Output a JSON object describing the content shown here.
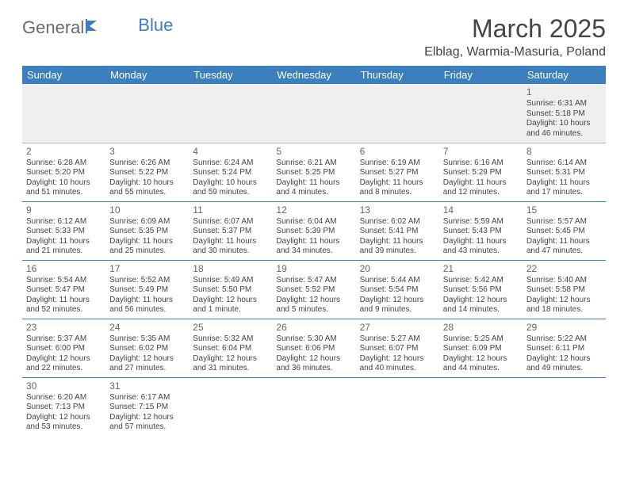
{
  "logo": {
    "text1": "General",
    "text2": "Blue"
  },
  "title": "March 2025",
  "subtitle": "Elblag, Warmia-Masuria, Poland",
  "colors": {
    "header_bg": "#3b7fbf",
    "header_text": "#ffffff",
    "row_border": "#3b7fbf",
    "blank_bg": "#efefef",
    "text": "#444444",
    "daynum": "#666666"
  },
  "day_headers": [
    "Sunday",
    "Monday",
    "Tuesday",
    "Wednesday",
    "Thursday",
    "Friday",
    "Saturday"
  ],
  "weeks": [
    [
      null,
      null,
      null,
      null,
      null,
      null,
      {
        "n": "1",
        "sr": "Sunrise: 6:31 AM",
        "ss": "Sunset: 5:18 PM",
        "dl": "Daylight: 10 hours and 46 minutes."
      }
    ],
    [
      {
        "n": "2",
        "sr": "Sunrise: 6:28 AM",
        "ss": "Sunset: 5:20 PM",
        "dl": "Daylight: 10 hours and 51 minutes."
      },
      {
        "n": "3",
        "sr": "Sunrise: 6:26 AM",
        "ss": "Sunset: 5:22 PM",
        "dl": "Daylight: 10 hours and 55 minutes."
      },
      {
        "n": "4",
        "sr": "Sunrise: 6:24 AM",
        "ss": "Sunset: 5:24 PM",
        "dl": "Daylight: 10 hours and 59 minutes."
      },
      {
        "n": "5",
        "sr": "Sunrise: 6:21 AM",
        "ss": "Sunset: 5:25 PM",
        "dl": "Daylight: 11 hours and 4 minutes."
      },
      {
        "n": "6",
        "sr": "Sunrise: 6:19 AM",
        "ss": "Sunset: 5:27 PM",
        "dl": "Daylight: 11 hours and 8 minutes."
      },
      {
        "n": "7",
        "sr": "Sunrise: 6:16 AM",
        "ss": "Sunset: 5:29 PM",
        "dl": "Daylight: 11 hours and 12 minutes."
      },
      {
        "n": "8",
        "sr": "Sunrise: 6:14 AM",
        "ss": "Sunset: 5:31 PM",
        "dl": "Daylight: 11 hours and 17 minutes."
      }
    ],
    [
      {
        "n": "9",
        "sr": "Sunrise: 6:12 AM",
        "ss": "Sunset: 5:33 PM",
        "dl": "Daylight: 11 hours and 21 minutes."
      },
      {
        "n": "10",
        "sr": "Sunrise: 6:09 AM",
        "ss": "Sunset: 5:35 PM",
        "dl": "Daylight: 11 hours and 25 minutes."
      },
      {
        "n": "11",
        "sr": "Sunrise: 6:07 AM",
        "ss": "Sunset: 5:37 PM",
        "dl": "Daylight: 11 hours and 30 minutes."
      },
      {
        "n": "12",
        "sr": "Sunrise: 6:04 AM",
        "ss": "Sunset: 5:39 PM",
        "dl": "Daylight: 11 hours and 34 minutes."
      },
      {
        "n": "13",
        "sr": "Sunrise: 6:02 AM",
        "ss": "Sunset: 5:41 PM",
        "dl": "Daylight: 11 hours and 39 minutes."
      },
      {
        "n": "14",
        "sr": "Sunrise: 5:59 AM",
        "ss": "Sunset: 5:43 PM",
        "dl": "Daylight: 11 hours and 43 minutes."
      },
      {
        "n": "15",
        "sr": "Sunrise: 5:57 AM",
        "ss": "Sunset: 5:45 PM",
        "dl": "Daylight: 11 hours and 47 minutes."
      }
    ],
    [
      {
        "n": "16",
        "sr": "Sunrise: 5:54 AM",
        "ss": "Sunset: 5:47 PM",
        "dl": "Daylight: 11 hours and 52 minutes."
      },
      {
        "n": "17",
        "sr": "Sunrise: 5:52 AM",
        "ss": "Sunset: 5:49 PM",
        "dl": "Daylight: 11 hours and 56 minutes."
      },
      {
        "n": "18",
        "sr": "Sunrise: 5:49 AM",
        "ss": "Sunset: 5:50 PM",
        "dl": "Daylight: 12 hours and 1 minute."
      },
      {
        "n": "19",
        "sr": "Sunrise: 5:47 AM",
        "ss": "Sunset: 5:52 PM",
        "dl": "Daylight: 12 hours and 5 minutes."
      },
      {
        "n": "20",
        "sr": "Sunrise: 5:44 AM",
        "ss": "Sunset: 5:54 PM",
        "dl": "Daylight: 12 hours and 9 minutes."
      },
      {
        "n": "21",
        "sr": "Sunrise: 5:42 AM",
        "ss": "Sunset: 5:56 PM",
        "dl": "Daylight: 12 hours and 14 minutes."
      },
      {
        "n": "22",
        "sr": "Sunrise: 5:40 AM",
        "ss": "Sunset: 5:58 PM",
        "dl": "Daylight: 12 hours and 18 minutes."
      }
    ],
    [
      {
        "n": "23",
        "sr": "Sunrise: 5:37 AM",
        "ss": "Sunset: 6:00 PM",
        "dl": "Daylight: 12 hours and 22 minutes."
      },
      {
        "n": "24",
        "sr": "Sunrise: 5:35 AM",
        "ss": "Sunset: 6:02 PM",
        "dl": "Daylight: 12 hours and 27 minutes."
      },
      {
        "n": "25",
        "sr": "Sunrise: 5:32 AM",
        "ss": "Sunset: 6:04 PM",
        "dl": "Daylight: 12 hours and 31 minutes."
      },
      {
        "n": "26",
        "sr": "Sunrise: 5:30 AM",
        "ss": "Sunset: 6:06 PM",
        "dl": "Daylight: 12 hours and 36 minutes."
      },
      {
        "n": "27",
        "sr": "Sunrise: 5:27 AM",
        "ss": "Sunset: 6:07 PM",
        "dl": "Daylight: 12 hours and 40 minutes."
      },
      {
        "n": "28",
        "sr": "Sunrise: 5:25 AM",
        "ss": "Sunset: 6:09 PM",
        "dl": "Daylight: 12 hours and 44 minutes."
      },
      {
        "n": "29",
        "sr": "Sunrise: 5:22 AM",
        "ss": "Sunset: 6:11 PM",
        "dl": "Daylight: 12 hours and 49 minutes."
      }
    ],
    [
      {
        "n": "30",
        "sr": "Sunrise: 6:20 AM",
        "ss": "Sunset: 7:13 PM",
        "dl": "Daylight: 12 hours and 53 minutes."
      },
      {
        "n": "31",
        "sr": "Sunrise: 6:17 AM",
        "ss": "Sunset: 7:15 PM",
        "dl": "Daylight: 12 hours and 57 minutes."
      },
      null,
      null,
      null,
      null,
      null
    ]
  ]
}
